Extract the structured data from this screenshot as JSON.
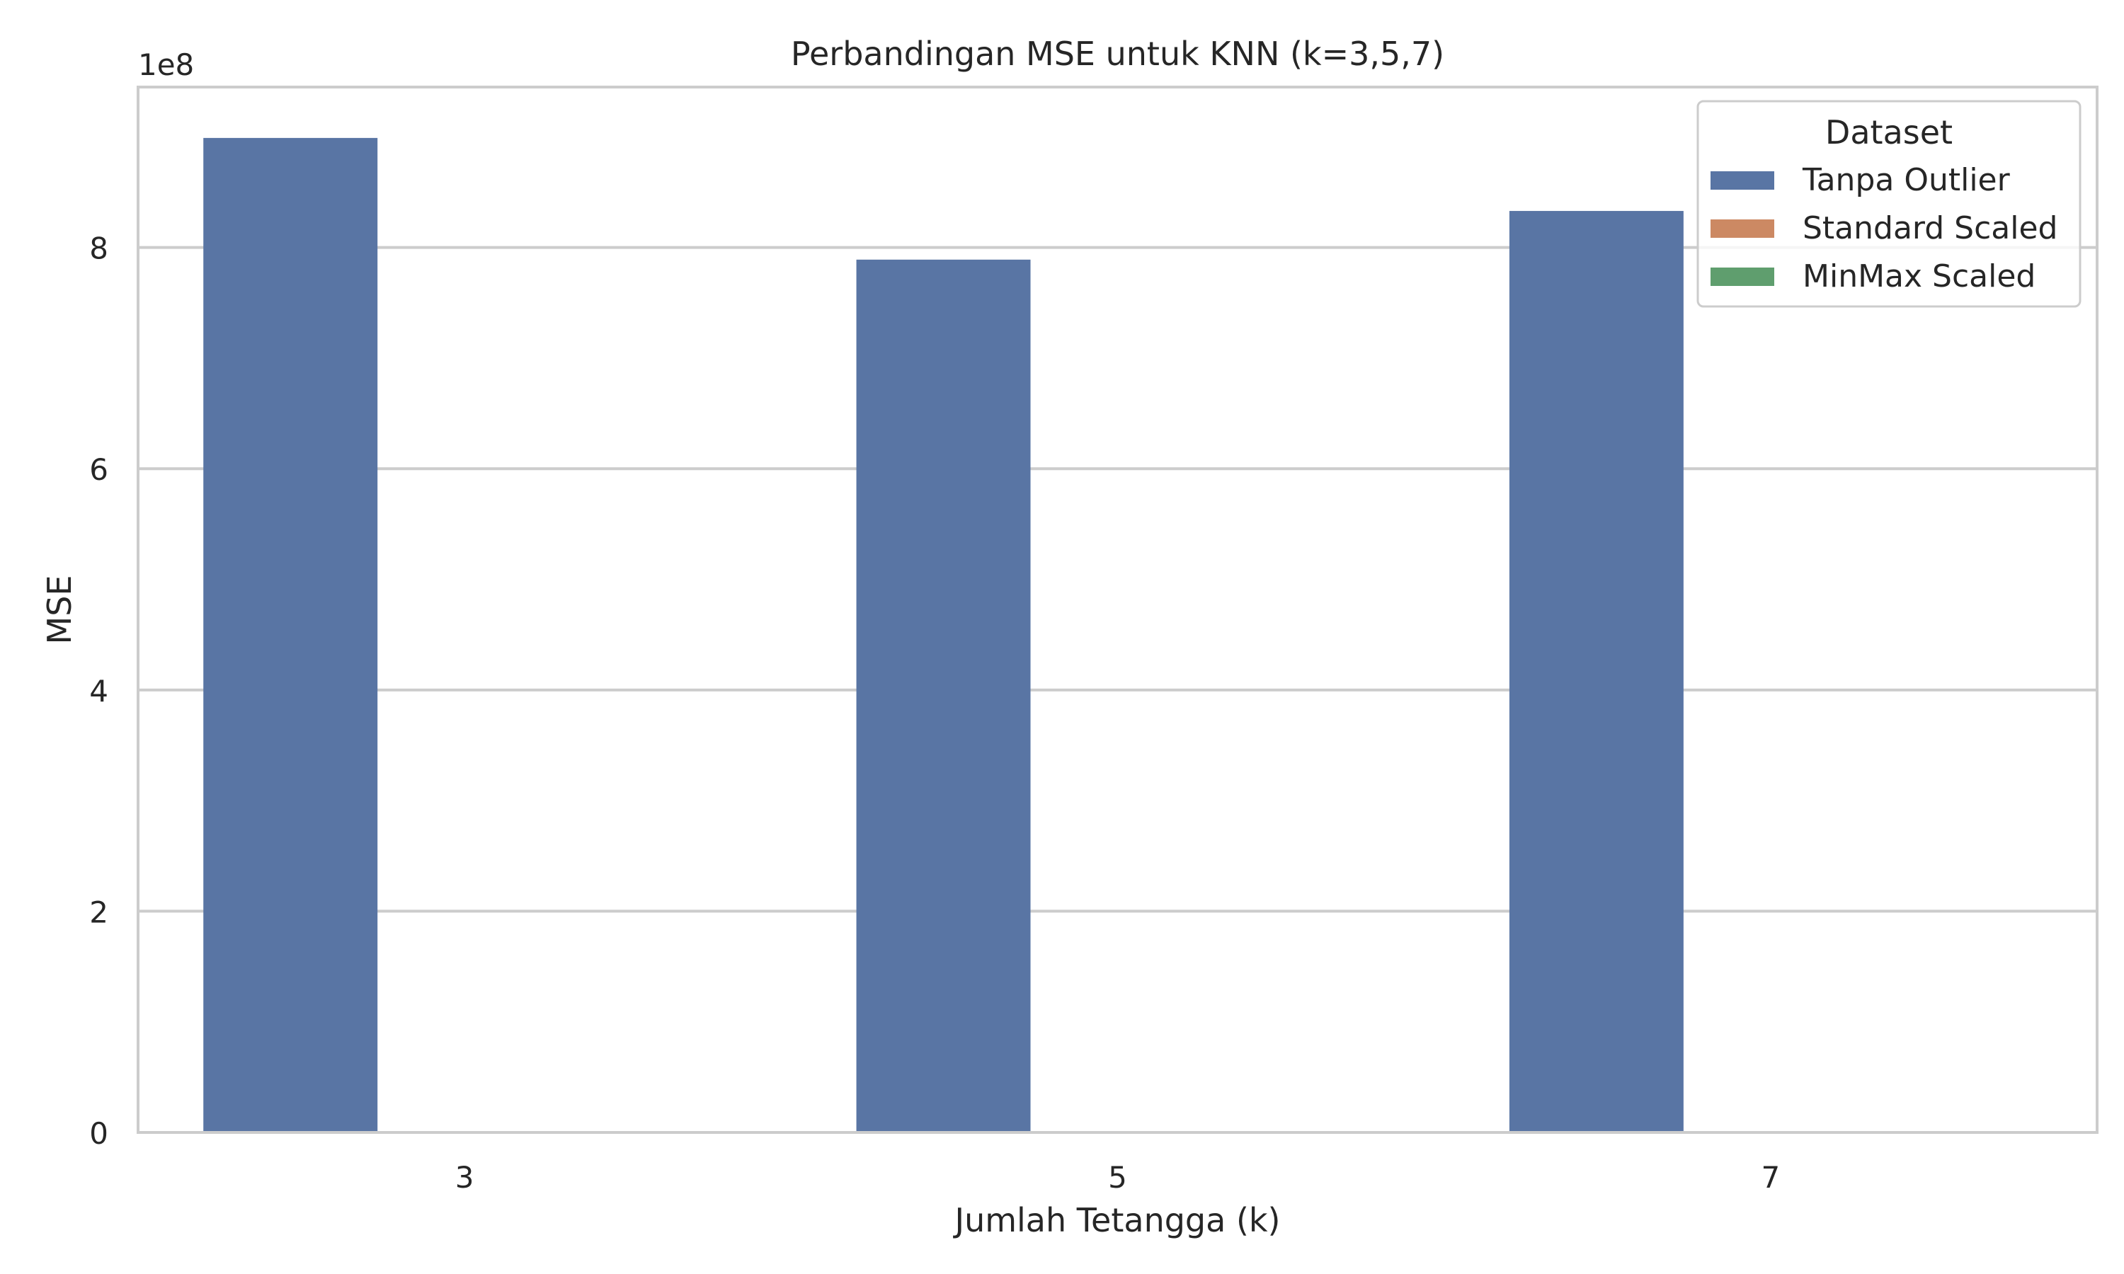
{
  "chart_data": {
    "type": "bar",
    "title": "Perbandingan MSE untuk KNN (k=3,5,7)",
    "xlabel": "Jumlah Tetangga (k)",
    "ylabel": "MSE",
    "y_scale_label": "1e8",
    "categories": [
      "3",
      "5",
      "7"
    ],
    "ylim": [
      0,
      9.45
    ],
    "y_ticks": [
      0,
      2,
      4,
      6,
      8
    ],
    "y_tick_labels": [
      "0",
      "2",
      "4",
      "6",
      "8"
    ],
    "grid": true,
    "legend": {
      "title": "Dataset",
      "position": "top-right"
    },
    "series": [
      {
        "name": "Tanpa Outlier",
        "color": "#5975a4",
        "values": [
          8.99,
          7.89,
          8.33
        ]
      },
      {
        "name": "Standard Scaled",
        "color": "#cc8963",
        "values": [
          0,
          0,
          0
        ]
      },
      {
        "name": "MinMax Scaled",
        "color": "#5f9e6e",
        "values": [
          0,
          0,
          0
        ]
      }
    ]
  }
}
